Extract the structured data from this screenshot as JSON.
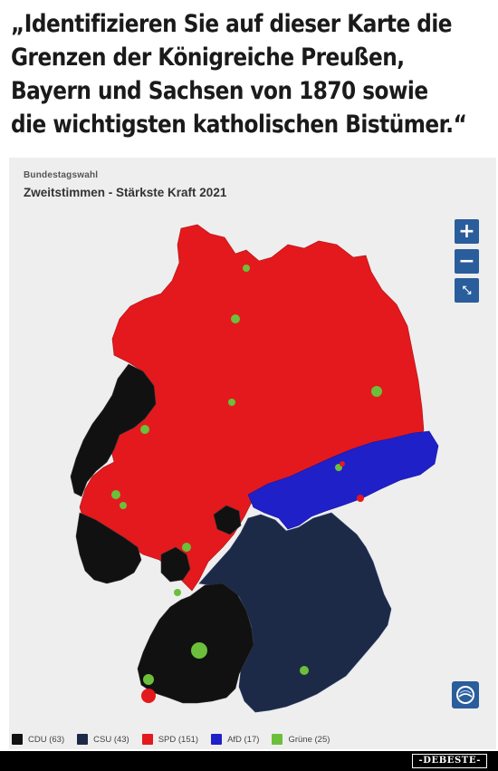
{
  "headline": {
    "line1": "„Identifizieren Sie auf dieser Karte die",
    "line2": "Grenzen der Königreiche Preußen,",
    "line3": "Bayern und Sachsen von 1870 sowie",
    "line4": "die wichtigsten katholischen Bistümer.“"
  },
  "map": {
    "kicker": "Bundestagswahl",
    "title": "Zweitstimmen - Stärkste Kraft 2021",
    "controls": {
      "zoom_in": "+",
      "zoom_out": "−",
      "reset": "⤡"
    }
  },
  "legend": [
    {
      "label": "CDU (63)",
      "color": "#111111"
    },
    {
      "label": "CSU (43)",
      "color": "#1c2a48"
    },
    {
      "label": "SPD (151)",
      "color": "#e3191d"
    },
    {
      "label": "AfD (17)",
      "color": "#2020c8"
    },
    {
      "label": "Grüne (25)",
      "color": "#6cbf3a"
    }
  ],
  "colors": {
    "cdu": "#111111",
    "csu": "#1c2a48",
    "spd": "#e3191d",
    "afd": "#2020c8",
    "gruene": "#6cbf3a",
    "control": "#2a5d9b"
  },
  "watermark": "-DEBESTE-"
}
